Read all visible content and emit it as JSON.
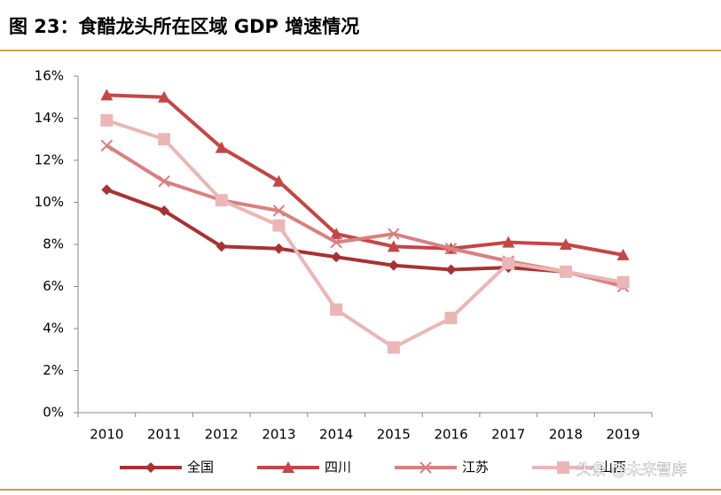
{
  "chart_data": {
    "type": "line",
    "title": "图 23：食醋龙头所在区域 GDP 增速情况",
    "categories": [
      "2010",
      "2011",
      "2012",
      "2013",
      "2014",
      "2015",
      "2016",
      "2017",
      "2018",
      "2019"
    ],
    "series": [
      {
        "name": "全国",
        "color": "#a63333",
        "marker": "diamond",
        "values": [
          10.6,
          9.6,
          7.9,
          7.8,
          7.4,
          7.0,
          6.8,
          6.9,
          6.7,
          6.1
        ]
      },
      {
        "name": "四川",
        "color": "#c44646",
        "marker": "triangle",
        "values": [
          15.1,
          15.0,
          12.6,
          11.0,
          8.5,
          7.9,
          7.8,
          8.1,
          8.0,
          7.5
        ]
      },
      {
        "name": "江苏",
        "color": "#d98080",
        "marker": "x",
        "values": [
          12.7,
          11.0,
          10.1,
          9.6,
          8.1,
          8.5,
          7.8,
          7.2,
          6.7,
          6.0
        ]
      },
      {
        "name": "山西",
        "color": "#ebb6b6",
        "marker": "square",
        "values": [
          13.9,
          13.0,
          10.1,
          8.9,
          4.9,
          3.1,
          4.5,
          7.1,
          6.7,
          6.2
        ]
      }
    ],
    "ylim": [
      0,
      16
    ],
    "yticks": [
      {
        "value": 0,
        "label": "0%"
      },
      {
        "value": 2,
        "label": "2%"
      },
      {
        "value": 4,
        "label": "4%"
      },
      {
        "value": 6,
        "label": "6%"
      },
      {
        "value": 8,
        "label": "8%"
      },
      {
        "value": 10,
        "label": "10%"
      },
      {
        "value": 12,
        "label": "12%"
      },
      {
        "value": 14,
        "label": "14%"
      },
      {
        "value": 16,
        "label": "16%"
      }
    ],
    "grid": false,
    "legend": "bottom",
    "watermark": "头条 @未来智库"
  }
}
